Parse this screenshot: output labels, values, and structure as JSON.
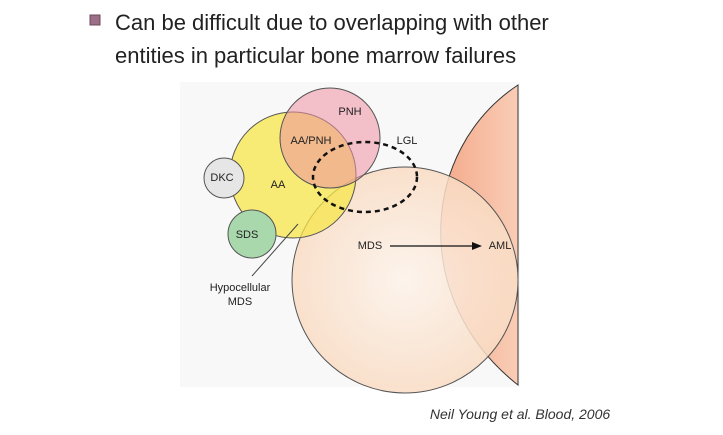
{
  "bullet": {
    "lines": [
      "Can be difficult due to overlapping with other",
      "entities in particular bone marrow failures"
    ]
  },
  "diagram": {
    "labels": {
      "pnh": "PNH",
      "aa_pnh": "AA/PNH",
      "lgl": "LGL",
      "dkc": "DKC",
      "aa": "AA",
      "sds": "SDS",
      "mds": "MDS",
      "aml": "AML",
      "hypocellular_mds": [
        "Hypocellular",
        "MDS"
      ]
    }
  },
  "citation": "Neil Young  et al. Blood, 2006"
}
